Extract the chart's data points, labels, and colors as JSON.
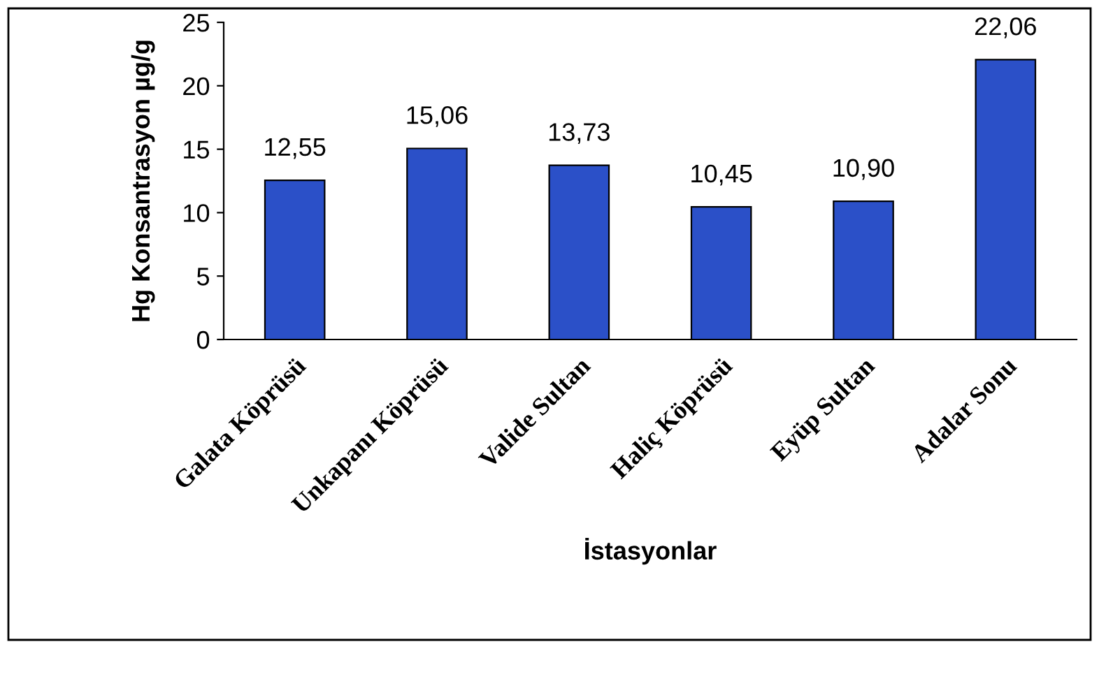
{
  "chart_data": {
    "type": "bar",
    "xlabel": "İstasyonlar",
    "ylabel": "Hg Konsantrasyon µg/g",
    "categories": [
      "Galata Köprüsü",
      "Unkapanı Köprüsü",
      "Valide Sultan",
      "Haliç Köprüsü",
      "Eyüp Sultan",
      "Adalar Sonu"
    ],
    "values": [
      12.55,
      15.06,
      13.73,
      10.45,
      10.9,
      22.06
    ],
    "value_labels": [
      "12,55",
      "15,06",
      "13,73",
      "10,45",
      "10,90",
      "22,06"
    ],
    "color": "#2b50c8",
    "ylim": [
      0,
      25
    ],
    "yticks": [
      0,
      5,
      10,
      15,
      20,
      25
    ],
    "grid": false,
    "legend": false
  }
}
